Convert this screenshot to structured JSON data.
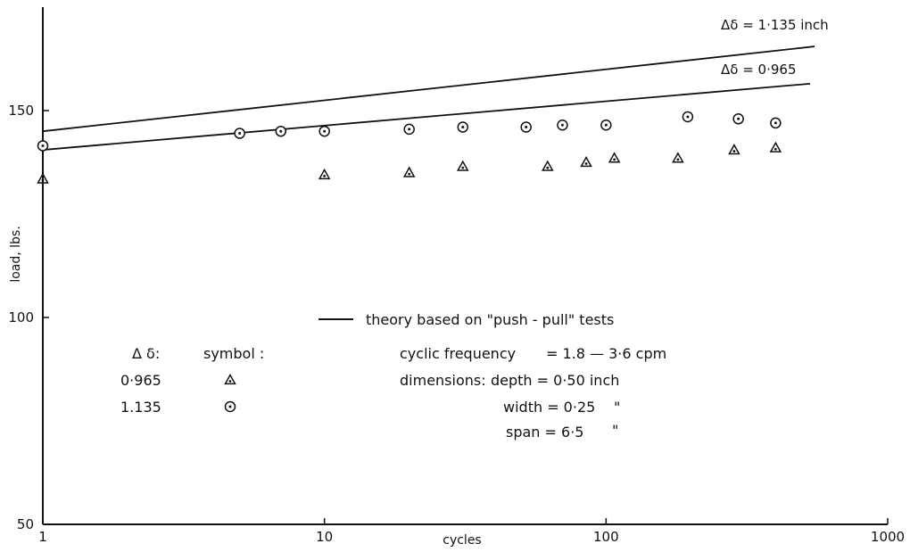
{
  "chart_data": {
    "type": "scatter",
    "xlabel": "cycles",
    "ylabel": "load, lbs.",
    "xscale": "log",
    "xlim": [
      1,
      1000
    ],
    "ylim": [
      50,
      175
    ],
    "x_ticks": [
      1,
      10,
      100,
      1000
    ],
    "x_tick_labels": [
      "1",
      "10",
      "100",
      "1000"
    ],
    "y_ticks": [
      50,
      100,
      150
    ],
    "y_tick_labels": [
      "50",
      "100",
      "150"
    ],
    "grid": false,
    "theory_lines": [
      {
        "label": "Δδ = 1·135 inch",
        "x": [
          1,
          550
        ],
        "y": [
          145,
          165.5
        ]
      },
      {
        "label": "Δδ = 0·965",
        "x": [
          1,
          530
        ],
        "y": [
          140.5,
          156.5
        ]
      }
    ],
    "series": [
      {
        "marker": "triangle",
        "x": [
          1,
          10,
          20,
          31,
          62,
          85,
          107,
          180,
          285,
          400
        ],
        "y": [
          133.5,
          134.5,
          135,
          136.5,
          136.5,
          137.5,
          138.5,
          138.5,
          140.5,
          141
        ],
        "color": "#111111"
      },
      {
        "marker": "circle-dot",
        "x": [
          1,
          5,
          7,
          10,
          20,
          31,
          52,
          70,
          100,
          195,
          295,
          400
        ],
        "y": [
          141.5,
          144.5,
          145,
          145,
          145.5,
          146,
          146,
          146.5,
          146.5,
          148.5,
          148,
          147
        ],
        "color": "#111111"
      }
    ]
  },
  "legend": {
    "line_label": "theory based on \"push - pull\" tests",
    "col1_header": "Δ δ:",
    "col2_header": "symbol :",
    "rows": [
      {
        "value": "0·965",
        "marker": "triangle"
      },
      {
        "value": "1.135",
        "marker": "circle-dot"
      }
    ]
  },
  "conditions": {
    "frequency_label": "cyclic frequency",
    "frequency_value": "= 1.8 — 3·6 cpm",
    "dimensions_label": "dimensions:",
    "depth": "depth = 0·50 inch",
    "width": "width = 0·25",
    "width_unit": "\"",
    "span": "span = 6·5",
    "span_unit": "\""
  }
}
